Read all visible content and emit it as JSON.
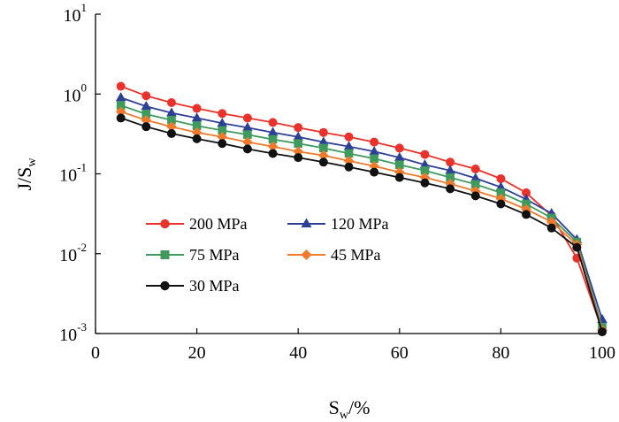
{
  "chart_data": {
    "type": "line",
    "title": "",
    "xlabel": "Sw/%",
    "xlabel_main": "S",
    "xlabel_sub": "w",
    "xlabel_suffix": "/%",
    "ylabel": "J/Sw",
    "ylabel_main": "J/S",
    "ylabel_sub": "w",
    "xlim": [
      0,
      100
    ],
    "ylim": [
      0.001,
      10
    ],
    "yscale": "log",
    "grid": false,
    "legend_position": "center-left",
    "x_ticks": [
      {
        "value": 0,
        "label": "0"
      },
      {
        "value": 20,
        "label": "20"
      },
      {
        "value": 40,
        "label": "40"
      },
      {
        "value": 60,
        "label": "60"
      },
      {
        "value": 80,
        "label": "80"
      },
      {
        "value": 100,
        "label": "100"
      }
    ],
    "y_ticks": [
      {
        "value": 10,
        "base": "10",
        "exp": "1"
      },
      {
        "value": 1,
        "base": "10",
        "exp": "0"
      },
      {
        "value": 0.1,
        "base": "10",
        "exp": "-1"
      },
      {
        "value": 0.01,
        "base": "10",
        "exp": "-2"
      },
      {
        "value": 0.001,
        "base": "10",
        "exp": "-3"
      }
    ],
    "x": [
      5,
      10,
      15,
      20,
      25,
      30,
      35,
      40,
      45,
      50,
      55,
      60,
      65,
      70,
      75,
      80,
      85,
      90,
      95,
      100
    ],
    "series": [
      {
        "name": "200 MPa",
        "color": "#e8322b",
        "marker": "circle",
        "values": [
          1.25,
          0.95,
          0.78,
          0.66,
          0.57,
          0.5,
          0.44,
          0.38,
          0.33,
          0.29,
          0.25,
          0.21,
          0.175,
          0.14,
          0.115,
          0.087,
          0.058,
          0.03,
          0.0088,
          0.0011
        ]
      },
      {
        "name": "120 MPa",
        "color": "#2e3f96",
        "marker": "triangle",
        "values": [
          0.9,
          0.7,
          0.58,
          0.5,
          0.43,
          0.38,
          0.33,
          0.29,
          0.25,
          0.22,
          0.19,
          0.16,
          0.13,
          0.11,
          0.088,
          0.068,
          0.048,
          0.032,
          0.015,
          0.0015
        ]
      },
      {
        "name": "75 MPa",
        "color": "#3f9a5e",
        "marker": "square",
        "values": [
          0.72,
          0.56,
          0.47,
          0.4,
          0.35,
          0.31,
          0.27,
          0.24,
          0.21,
          0.18,
          0.155,
          0.13,
          0.11,
          0.09,
          0.074,
          0.058,
          0.042,
          0.028,
          0.014,
          0.0012
        ]
      },
      {
        "name": "45 MPa",
        "color": "#f07a2c",
        "marker": "diamond",
        "values": [
          0.6,
          0.47,
          0.39,
          0.33,
          0.29,
          0.25,
          0.22,
          0.19,
          0.17,
          0.145,
          0.125,
          0.105,
          0.09,
          0.075,
          0.061,
          0.049,
          0.036,
          0.025,
          0.013,
          0.0011
        ]
      },
      {
        "name": "30 MPa",
        "color": "#111111",
        "marker": "circle",
        "values": [
          0.5,
          0.39,
          0.32,
          0.275,
          0.24,
          0.205,
          0.18,
          0.16,
          0.14,
          0.122,
          0.105,
          0.09,
          0.077,
          0.065,
          0.053,
          0.042,
          0.031,
          0.021,
          0.012,
          0.00105
        ]
      }
    ]
  }
}
